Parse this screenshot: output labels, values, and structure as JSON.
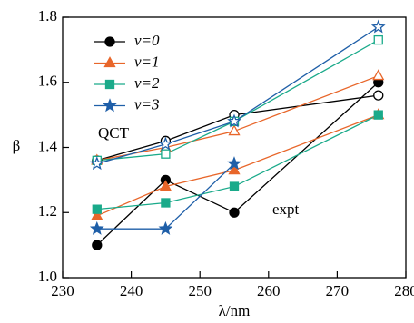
{
  "chart_data": {
    "type": "line",
    "x_label": "λ/nm",
    "y_label": "β",
    "x": [
      235,
      245,
      255,
      276
    ],
    "xlim": [
      230,
      280
    ],
    "xticks": [
      230,
      240,
      250,
      260,
      270,
      280
    ],
    "ylim": [
      1,
      1.8
    ],
    "yticks": [
      {
        "value": 1,
        "label": "1.0"
      },
      1.2,
      1.4,
      1.6,
      1.8
    ],
    "annotations": [
      "QCT",
      "expt"
    ],
    "series": [
      {
        "name": "v=0",
        "color": "#000000",
        "marker": "circle",
        "qct": [
          1.36,
          1.42,
          1.5,
          1.56
        ],
        "expt": [
          1.1,
          1.3,
          1.2,
          1.6
        ]
      },
      {
        "name": "v=1",
        "color": "#e8662a",
        "marker": "triangle",
        "qct": [
          1.36,
          1.4,
          1.45,
          1.62
        ],
        "expt": [
          1.19,
          1.28,
          1.33,
          1.5
        ]
      },
      {
        "name": "v=2",
        "color": "#1aaa8a",
        "marker": "square",
        "qct": [
          1.36,
          1.38,
          1.48,
          1.73
        ],
        "expt": [
          1.21,
          1.23,
          1.28,
          1.5
        ]
      },
      {
        "name": "v=3",
        "color": "#1f5fa8",
        "marker": "star",
        "qct": [
          1.35,
          1.41,
          1.48,
          1.77
        ],
        "expt": [
          1.15,
          1.15,
          1.35,
          null
        ]
      }
    ],
    "legend": "upper left"
  }
}
